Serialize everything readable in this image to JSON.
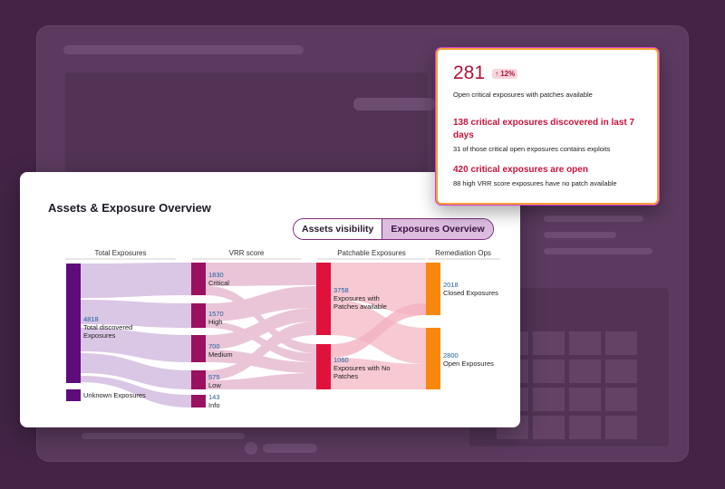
{
  "card": {
    "title": "Assets & Exposure Overview",
    "toggle": {
      "option1": "Assets visibility",
      "option2": "Exposures Overview",
      "selected": "Exposures Overview"
    }
  },
  "columns": [
    "Total Exposures",
    "VRR score",
    "Patchable Exposures",
    "Remediation Ops"
  ],
  "nodes": {
    "total": {
      "value": "4818",
      "label": "Total discovered Exposures"
    },
    "unknown": {
      "label": "Unknown Exposures"
    },
    "critical": {
      "value": "1830",
      "label": "Critical"
    },
    "high": {
      "value": "1570",
      "label": "High"
    },
    "medium": {
      "value": "700",
      "label": "Medium"
    },
    "low": {
      "value": "575",
      "label": "Low"
    },
    "info": {
      "value": "143",
      "label": "Info"
    },
    "patches_available": {
      "value": "3758",
      "label": "Exposures with Patches available"
    },
    "no_patches": {
      "value": "1060",
      "label": "Exposures with No Patches"
    },
    "closed": {
      "value": "2018",
      "label": "Closed Exposures"
    },
    "open": {
      "value": "2800",
      "label": "Open Exposures"
    }
  },
  "colors": {
    "total": "#5e0c79",
    "vrr": "#9a1160",
    "patch": "#e0123b",
    "remediation": "#f8880b",
    "flow1": "#d9c3e4",
    "flow2": "#e6b7cf",
    "flow3": "#f6c4cf",
    "value_text": "#1f5fa0"
  },
  "popup": {
    "count": "281",
    "change": "↑ 12%",
    "count_label": "Open critical exposures with patches available",
    "highlight1": "138 critical exposures discovered in last 7 days",
    "detail1": "31 of those critical open exposures contains exploits",
    "highlight2": "420 critical exposures are open",
    "detail2": "88 high VRR score exposures have no patch available"
  }
}
